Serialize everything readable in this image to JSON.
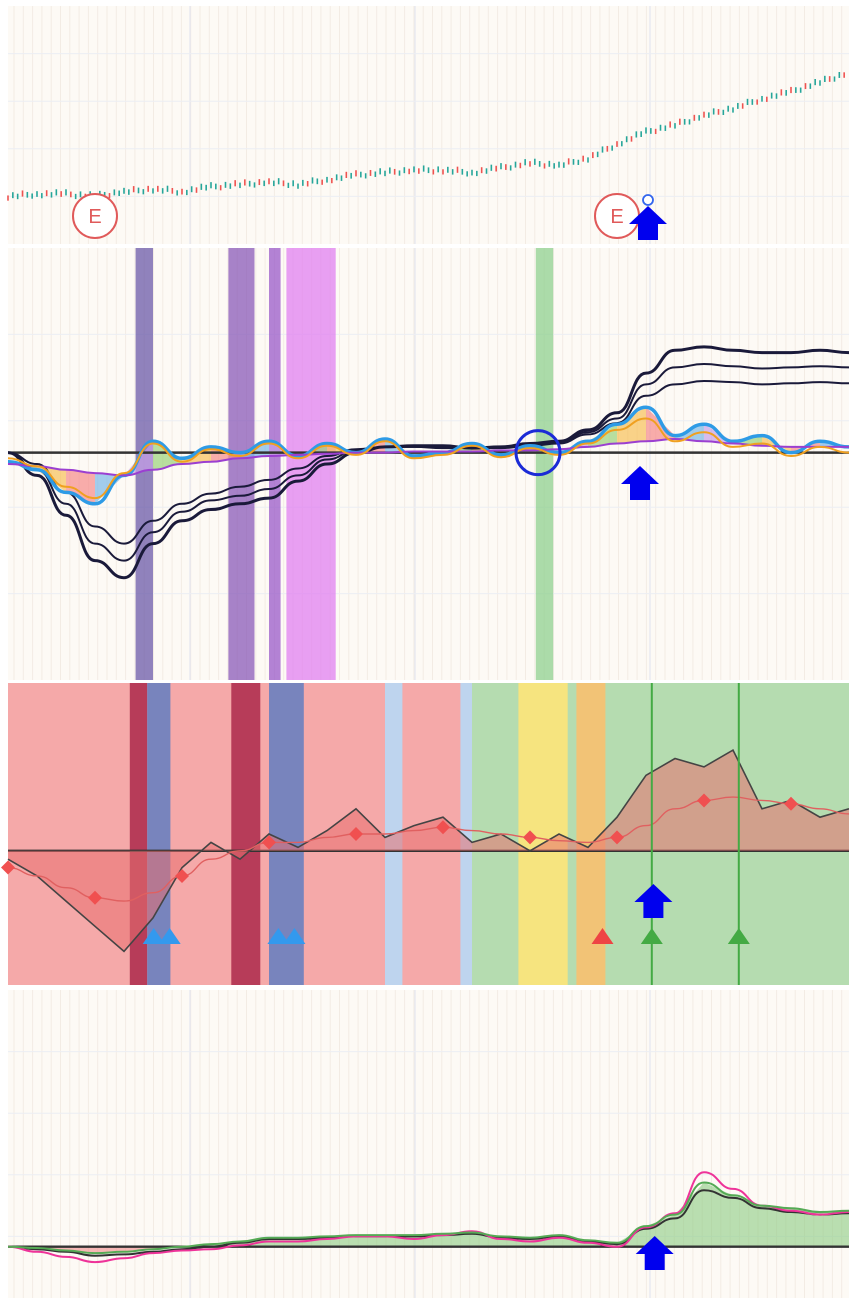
{
  "chart_data": [
    {
      "type": "line",
      "panel": "price",
      "series": [
        {
          "style": "candles",
          "values": [
            20,
            21,
            21,
            20,
            22,
            23,
            22,
            24,
            25,
            26,
            25,
            27,
            29,
            30,
            31,
            31,
            30,
            32,
            34,
            33,
            36,
            42,
            47,
            50,
            54,
            57,
            61,
            64,
            68,
            72
          ]
        }
      ],
      "markers": [
        {
          "type": "earnings",
          "label": "E",
          "x": 3
        },
        {
          "type": "earnings",
          "label": "E",
          "x": 21
        },
        {
          "type": "signal-up",
          "x": 22
        }
      ],
      "grid": true
    },
    {
      "type": "line",
      "panel": "oscillator-ribbon",
      "series": [
        {
          "name": "",
          "color": "#1a1a3a",
          "values": [
            0,
            -20,
            -55,
            -95,
            -110,
            -80,
            -60,
            -50,
            -45,
            -40,
            -25,
            -10,
            0,
            5,
            6,
            6,
            4,
            5,
            8,
            10,
            20,
            35,
            70,
            90,
            93,
            90,
            88,
            88,
            90,
            88
          ]
        },
        {
          "name": "",
          "color": "#1a1a3a",
          "values": [
            0,
            -15,
            -45,
            -80,
            -95,
            -70,
            -52,
            -42,
            -38,
            -32,
            -20,
            -6,
            2,
            5,
            5,
            5,
            4,
            5,
            7,
            9,
            18,
            30,
            60,
            75,
            78,
            76,
            74,
            75,
            76,
            75
          ]
        },
        {
          "name": "",
          "color": "#1a1a3a",
          "values": [
            0,
            -10,
            -35,
            -65,
            -80,
            -60,
            -45,
            -36,
            -30,
            -24,
            -14,
            -3,
            3,
            5,
            5,
            4,
            4,
            4,
            6,
            8,
            16,
            26,
            50,
            60,
            63,
            62,
            60,
            61,
            62,
            61
          ]
        },
        {
          "name": "",
          "color": "#2e9be6",
          "values": [
            -8,
            -15,
            -35,
            -45,
            -20,
            10,
            -5,
            5,
            0,
            10,
            -3,
            8,
            0,
            12,
            -3,
            0,
            8,
            -2,
            6,
            0,
            10,
            25,
            40,
            15,
            25,
            10,
            15,
            0,
            10,
            5
          ]
        },
        {
          "name": "",
          "color": "#9b3fd1",
          "values": [
            -10,
            -12,
            -15,
            -18,
            -20,
            -15,
            -10,
            -8,
            -5,
            -3,
            -2,
            -1,
            0,
            0,
            1,
            1,
            1,
            2,
            2,
            3,
            5,
            8,
            10,
            12,
            10,
            8,
            6,
            5,
            5,
            5
          ]
        },
        {
          "name": "",
          "color": "#f0a020",
          "values": [
            -5,
            -12,
            -30,
            -40,
            -18,
            8,
            -8,
            3,
            -3,
            8,
            -5,
            6,
            -2,
            10,
            -5,
            -2,
            6,
            -4,
            4,
            -2,
            8,
            20,
            30,
            10,
            18,
            5,
            8,
            -3,
            5,
            0
          ]
        }
      ],
      "vertical_bands": [
        {
          "x": [
            4.4,
            5.0
          ],
          "color": "#6b5aa8"
        },
        {
          "x": [
            7.6,
            8.5
          ],
          "color": "#8a5ab8"
        },
        {
          "x": [
            9.0,
            9.4
          ],
          "color": "#9a5ac8"
        },
        {
          "x": [
            9.6,
            11.3
          ],
          "color": "#e080f0"
        },
        {
          "x": [
            18.2,
            18.8
          ],
          "color": "#8fd08f"
        }
      ],
      "markers": [
        {
          "type": "circle",
          "x": 18
        },
        {
          "type": "signal-up",
          "x": 22
        }
      ],
      "baseline": 0,
      "grid": true
    },
    {
      "type": "area",
      "panel": "regime",
      "series": [
        {
          "name": "",
          "color": "#444444",
          "values": [
            -5,
            -15,
            -30,
            -45,
            -60,
            -40,
            -10,
            5,
            -5,
            10,
            2,
            12,
            25,
            8,
            15,
            20,
            5,
            10,
            0,
            10,
            2,
            20,
            45,
            55,
            50,
            60,
            25,
            30,
            20,
            25
          ]
        },
        {
          "name": "",
          "color": "#e06060",
          "values": [
            -10,
            -15,
            -22,
            -28,
            -30,
            -25,
            -15,
            -5,
            0,
            5,
            5,
            8,
            10,
            10,
            12,
            14,
            12,
            10,
            8,
            6,
            5,
            8,
            15,
            25,
            30,
            32,
            30,
            28,
            25,
            22
          ]
        }
      ],
      "regimes": [
        {
          "x": [
            0,
            16
          ],
          "color": "#f5a9a9"
        },
        {
          "x": [
            16,
            30
          ],
          "color": "#b5dcb0"
        }
      ],
      "vertical_bands": [
        {
          "x": [
            4.2,
            4.8
          ],
          "color": "#b03050"
        },
        {
          "x": [
            4.8,
            5.6
          ],
          "color": "#6a7fbf"
        },
        {
          "x": [
            7.7,
            8.7
          ],
          "color": "#b03050"
        },
        {
          "x": [
            9.0,
            10.2
          ],
          "color": "#6a7fbf"
        },
        {
          "x": [
            13.0,
            13.6
          ],
          "color": "#b8d8f5"
        },
        {
          "x": [
            15.6,
            16.0
          ],
          "color": "#b8d8f5"
        },
        {
          "x": [
            17.6,
            19.3
          ],
          "color": "#fde47a"
        },
        {
          "x": [
            19.6,
            20.6
          ],
          "color": "#f8c070"
        }
      ],
      "markers": [
        {
          "type": "triangle-up",
          "x": 5.3,
          "color": "#3399ee"
        },
        {
          "type": "triangle-up",
          "x": 9.6,
          "color": "#3399ee"
        },
        {
          "type": "triangle-up",
          "x": 20.5,
          "color": "#ee4444"
        },
        {
          "type": "triangle-up",
          "x": 22.2,
          "color": "#44aa44"
        },
        {
          "type": "triangle-up",
          "x": 25.2,
          "color": "#44aa44"
        },
        {
          "type": "signal-up",
          "x": 22.6
        }
      ],
      "baseline": 0,
      "grid": true
    },
    {
      "type": "area",
      "panel": "momentum",
      "series": [
        {
          "name": "",
          "color": "#333333",
          "values": [
            0,
            -2,
            -4,
            -7,
            -6,
            -4,
            -2,
            0,
            3,
            6,
            6,
            7,
            8,
            8,
            8,
            9,
            10,
            7,
            6,
            8,
            4,
            2,
            14,
            22,
            44,
            38,
            30,
            27,
            25,
            26
          ]
        },
        {
          "name": "",
          "color": "#ee3399",
          "values": [
            0,
            -4,
            -8,
            -12,
            -9,
            -5,
            -3,
            -2,
            1,
            4,
            4,
            6,
            8,
            8,
            6,
            9,
            12,
            6,
            4,
            7,
            3,
            0,
            15,
            26,
            58,
            45,
            32,
            28,
            25,
            27
          ]
        },
        {
          "name": "",
          "color": "#55aa55",
          "values": [
            0,
            -1,
            -3,
            -5,
            -4,
            -2,
            0,
            2,
            4,
            7,
            7,
            8,
            9,
            9,
            9,
            10,
            11,
            8,
            7,
            9,
            5,
            3,
            16,
            25,
            50,
            40,
            32,
            30,
            27,
            28
          ]
        }
      ],
      "markers": [
        {
          "type": "signal-up",
          "x": 22.3
        }
      ],
      "baseline": 0,
      "grid": true
    }
  ]
}
